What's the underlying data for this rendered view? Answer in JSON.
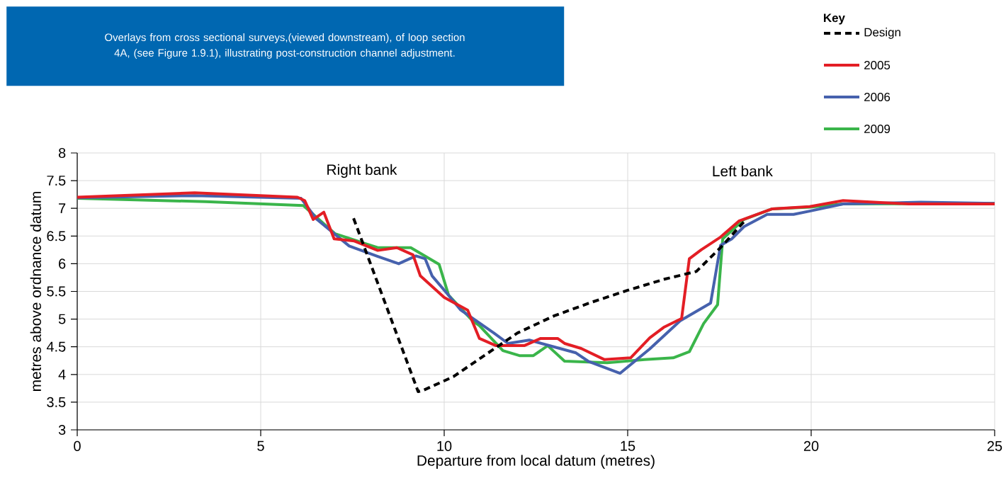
{
  "chart_data": {
    "type": "line",
    "title": "Overlays from cross sectional surveys,(viewed downstream), of loop section 4A, (see Figure 1.9.1), illustrating post-construction channel adjustment.",
    "xlabel": "Departure from local datum (metres)",
    "ylabel": "metres above ordnance datum",
    "legend_title": "Key",
    "legend": "top right",
    "grid": true,
    "xlim": [
      0,
      25
    ],
    "xticks": [
      0,
      5,
      10,
      15,
      20,
      25
    ],
    "ylim": [
      3,
      8
    ],
    "yticks": [
      3,
      3.5,
      4,
      4.5,
      5,
      5.5,
      6,
      6.5,
      7,
      7.5,
      8
    ],
    "annotations": [
      "Right bank",
      "Left bank"
    ],
    "series": [
      {
        "name": "Design",
        "color": "#000000",
        "line_style": "dashed",
        "x": [
          7.53,
          9.29,
          9.45,
          10.25,
          11,
          12,
          13,
          14,
          15,
          16,
          16.87,
          17.53,
          18.17
        ],
        "values": [
          6.82,
          3.69,
          3.72,
          3.96,
          4.3,
          4.75,
          5.06,
          5.3,
          5.52,
          5.72,
          5.86,
          6.29,
          6.76
        ]
      },
      {
        "name": "2005",
        "color": "#e31e25",
        "line_style": "solid",
        "x": [
          0,
          3.2,
          6.0,
          6.2,
          6.43,
          6.72,
          7.0,
          7.55,
          8.19,
          8.71,
          9.15,
          9.35,
          10.0,
          10.64,
          10.96,
          11.41,
          12.18,
          12.63,
          13.09,
          13.28,
          13.73,
          14.36,
          15.08,
          15.6,
          15.98,
          16.47,
          16.68,
          17.0,
          17.53,
          18.03,
          18.94,
          19.96,
          20.87,
          22.66,
          25
        ],
        "values": [
          7.2,
          7.28,
          7.2,
          7.14,
          6.8,
          6.93,
          6.45,
          6.41,
          6.24,
          6.29,
          6.16,
          5.78,
          5.39,
          5.16,
          4.65,
          4.52,
          4.52,
          4.65,
          4.65,
          4.56,
          4.47,
          4.27,
          4.3,
          4.66,
          4.85,
          5.01,
          6.09,
          6.25,
          6.48,
          6.77,
          6.99,
          7.03,
          7.14,
          7.08,
          7.08
        ]
      },
      {
        "name": "2006",
        "color": "#4661ad",
        "line_style": "solid",
        "x": [
          0,
          3.2,
          6.1,
          6.53,
          7.41,
          8.19,
          8.76,
          9.23,
          9.48,
          9.67,
          10.12,
          10.44,
          11.35,
          11.74,
          12.32,
          13.59,
          13.92,
          14.79,
          15.6,
          16.43,
          17.26,
          17.53,
          17.84,
          18.17,
          18.8,
          19.52,
          19.96,
          20.87,
          22.99,
          25
        ],
        "values": [
          7.19,
          7.23,
          7.18,
          6.8,
          6.32,
          6.13,
          6.0,
          6.14,
          6.09,
          5.78,
          5.43,
          5.17,
          4.75,
          4.56,
          4.62,
          4.39,
          4.24,
          4.02,
          4.46,
          4.97,
          5.29,
          6.33,
          6.45,
          6.67,
          6.89,
          6.89,
          6.95,
          7.08,
          7.11,
          7.09
        ]
      },
      {
        "name": "2009",
        "color": "#3ab54a",
        "line_style": "solid",
        "x": [
          0,
          3.5,
          6.16,
          7.03,
          8.19,
          9.09,
          9.86,
          10.12,
          10.77,
          10.96,
          11.6,
          12.05,
          12.43,
          12.82,
          13.28,
          14.44,
          15.46,
          16.24,
          16.68,
          17.07,
          17.45,
          17.59,
          18.17,
          18.94,
          19.96,
          20.87,
          25
        ],
        "values": [
          7.18,
          7.12,
          7.05,
          6.54,
          6.29,
          6.29,
          5.99,
          5.43,
          4.97,
          4.88,
          4.43,
          4.34,
          4.34,
          4.52,
          4.24,
          4.21,
          4.27,
          4.3,
          4.41,
          4.92,
          5.26,
          6.45,
          6.8,
          6.99,
          7.02,
          7.08,
          7.09
        ]
      }
    ]
  }
}
